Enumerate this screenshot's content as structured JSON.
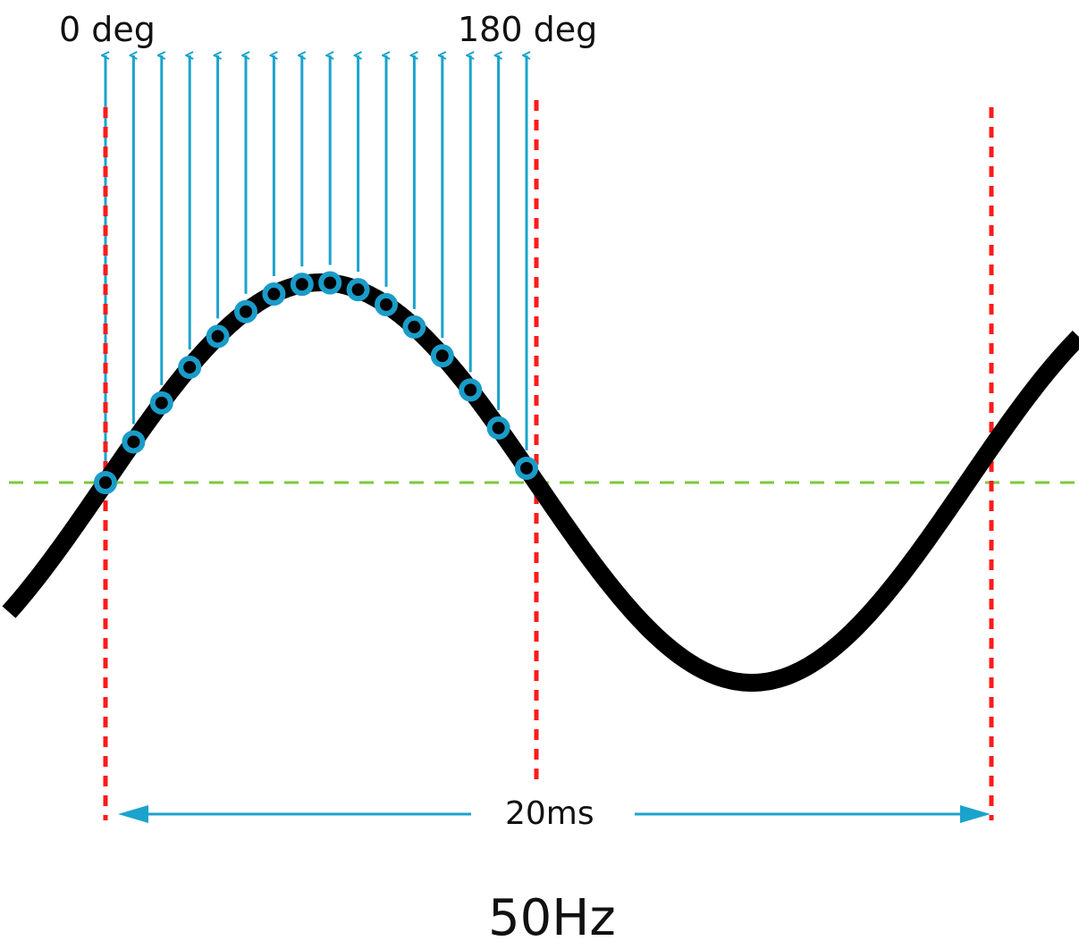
{
  "labels": {
    "start_phase": "0 deg",
    "end_phase": "180 deg",
    "period": "20ms",
    "frequency": "50Hz"
  },
  "colors": {
    "waveform": "#000000",
    "sample_marker": "#1a9cc8",
    "sample_arrow": "#1aa3cc",
    "period_marker": "#ff1a1a",
    "zero_axis": "#7dc83a",
    "period_arrow": "#1aa3cc"
  },
  "waveform": {
    "frequency_hz": 50,
    "period_ms": 20,
    "samples_per_half_cycle": 15
  }
}
